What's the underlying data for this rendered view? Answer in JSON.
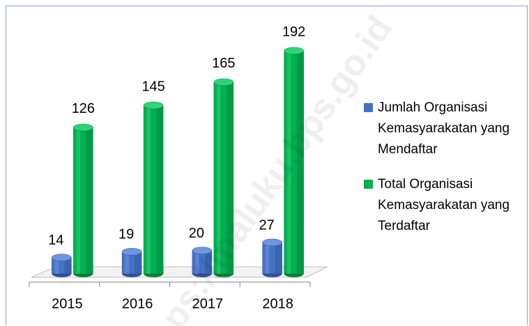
{
  "chart_data": {
    "type": "bar3d",
    "categories": [
      "2015",
      "2016",
      "2017",
      "2018"
    ],
    "series": [
      {
        "name": "Jumlah Organisasi Kemasyarakatan yang Mendaftar",
        "color": "#4472c4",
        "values": [
          14,
          19,
          20,
          27
        ]
      },
      {
        "name": "Total Organisasi Kemasyarakatan yang Terdaftar",
        "color": "#00b050",
        "values": [
          126,
          145,
          165,
          192
        ]
      }
    ],
    "legend": "right",
    "watermark": "ps://maluku.bps.go.id"
  }
}
